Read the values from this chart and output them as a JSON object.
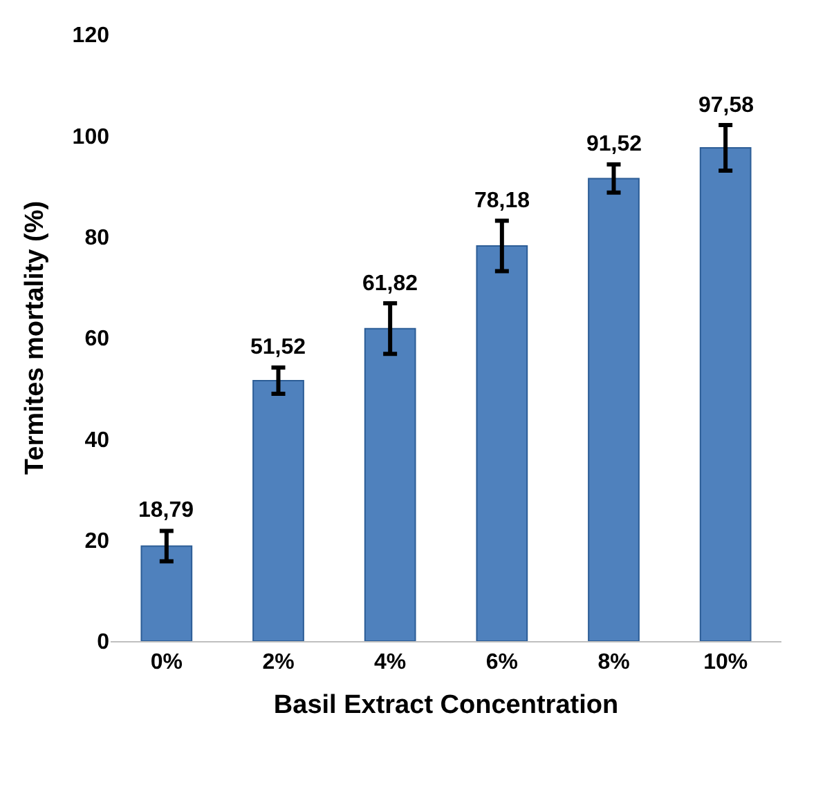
{
  "chart_data": {
    "type": "bar",
    "xlabel": "Basil Extract Concentration",
    "ylabel": "Termites mortality (%)",
    "categories": [
      "0%",
      "2%",
      "4%",
      "6%",
      "8%",
      "10%"
    ],
    "values": [
      18.79,
      51.52,
      61.82,
      78.18,
      91.52,
      97.58
    ],
    "value_labels": [
      "18,79",
      "51,52",
      "61,82",
      "78,18",
      "91,52",
      "97,58"
    ],
    "errors": [
      3,
      2.6,
      5,
      5,
      2.8,
      4.5
    ],
    "color": "#4f81bd",
    "ylim": [
      0,
      120
    ],
    "yticks": [
      0,
      20,
      40,
      60,
      80,
      100,
      120
    ],
    "legend": false
  }
}
